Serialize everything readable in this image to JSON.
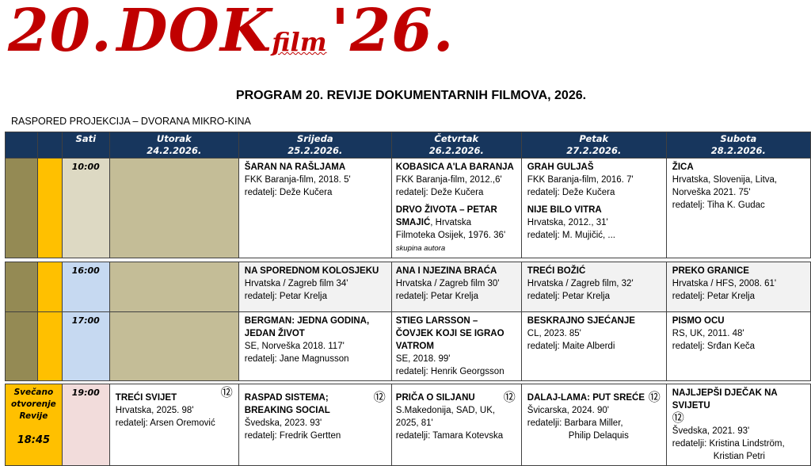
{
  "logo": {
    "number": "20.",
    "dok": "DOK",
    "film": "film",
    "year": "'26."
  },
  "title": "PROGRAM  20. REVIJE DOKUMENTARNIH FILMOVA, 2026.",
  "venue": "RASPORED PROJEKCIJA – DVORANA MIKRO-KINA",
  "colors": {
    "header": "#17365d",
    "logo": "#c00000",
    "olive": "#948a54",
    "yellow": "#ffc000"
  },
  "header": {
    "sati": "Sati",
    "days": [
      {
        "day": "Utorak",
        "date": "24.2.2026."
      },
      {
        "day": "Srijeda",
        "date": "25.2.2026."
      },
      {
        "day": "Četvrtak",
        "date": "26.2.2026."
      },
      {
        "day": "Petak",
        "date": "27.2.2026."
      },
      {
        "day": "Subota",
        "date": "28.2.2026."
      }
    ]
  },
  "opening": {
    "line1": "Svečano",
    "line2": "otvorenje",
    "line3": "Revije",
    "time": "18:45"
  },
  "rating": "⑫",
  "rows": [
    {
      "time": "10:00",
      "cells": {
        "wed": [
          {
            "title": "ŠARAN NA RAŠLJAMA",
            "info": "FKK Baranja-film,  2018.  5'",
            "director": "redatelj: Deže Kučera"
          }
        ],
        "thu": [
          {
            "title": "KOBASICA A'LA BARANJA",
            "info": "FKK Baranja-film, 2012.,6'",
            "director": "redatelj: Deže Kučera"
          },
          {
            "title": "DRVO  ŽIVOTA – PETAR SMAJIĆ",
            "info": ", Hrvatska",
            "info2": "Filmoteka Osijek, 1976. 36'",
            "director": "skupina autora"
          }
        ],
        "fri": [
          {
            "title": "GRAH GULJAŠ",
            "info": "FKK Baranja-film, 2016. 7'",
            "director": "redatelj: Deže Kučera"
          },
          {
            "title": "NIJE BILO VITRA",
            "info": "Hrvatska, 2012., 31'",
            "director": "redatelj: M. Mujičić, ..."
          }
        ],
        "sat": [
          {
            "title": "ŽICA",
            "info": "Hrvatska, Slovenija, Litva, Norveška   2021.  75'",
            "director": "redatelj:  Tiha K. Gudac"
          }
        ]
      }
    },
    {
      "time": "16:00",
      "cells": {
        "wed": {
          "title": "NA SPOREDNOM KOLOSJEKU",
          "info": "Hrvatska / Zagreb film  34'",
          "director": "redatelj: Petar Krelja"
        },
        "thu": {
          "title": "ANA I NJEZINA BRAĆA",
          "info": "Hrvatska  / Zagreb film 30'",
          "director": "redatelj: Petar Krelja"
        },
        "fri": {
          "title": "TREĆI  BOŽIĆ",
          "info": "Hrvatska / Zagreb film,  32'",
          "director": "redatelj: Petar Krelja"
        },
        "sat": {
          "title": "PREKO GRANICE",
          "info": "Hrvatska / HFS, 2008.  61'",
          "director": "redatelj: Petar Krelja"
        }
      }
    },
    {
      "time": "17:00",
      "cells": {
        "wed": {
          "title": "BERGMAN: JEDNA GODINA, JEDAN ŽIVOT",
          "info": "SE, Norveška   2018.  117'",
          "director": "redatelj:  Jane Magnusson"
        },
        "thu": {
          "title": "STIEG LARSSON – ČOVJEK KOJI SE IGRAO VATROM",
          "info": "SE,  2018.  99'",
          "director": "redatelj: Henrik Georgsson"
        },
        "fri": {
          "title": "BESKRAJNO SJEĆANJE",
          "info": "CL, 2023.  85'",
          "director": "redatelj:  Maite Alberdi"
        },
        "sat": {
          "title": "PISMO  OCU",
          "info": "RS, UK,  2011.  48'",
          "director": "redatelj: Srđan Keča"
        }
      }
    },
    {
      "time": "19:00",
      "cells": {
        "tue": {
          "title": "TREĆI  SVIJET",
          "info": "Hrvatska,  2025.  98'",
          "director": "redatelj:  Arsen Oremović"
        },
        "wed": {
          "title": "RASPAD SISTEMA; BREAKING SOCIAL",
          "info": "Švedska, 2023.  93'",
          "director": "redatelj:  Fredrik Gertten"
        },
        "thu": {
          "title": "PRIČA O SILJANU",
          "info": "S.Makedonija, SAD, UK, 2025,  81'",
          "director": "redatelji: Tamara Kotevska"
        },
        "fri": {
          "title": "DALAJ-LAMA:  PUT SREĆE",
          "info": "Švicarska,  2024.  90'",
          "director": "redatelji:  Barbara Miller,",
          "director2": "Philip Delaquis"
        },
        "sat": {
          "title": "NAJLJEPŠI  DJEČAK NA SVIJETU",
          "info": "Švedska,  2021.  93'",
          "director": "redatelji: Kristina Lindström,",
          "director2": "Kristian Petri"
        }
      }
    }
  ]
}
